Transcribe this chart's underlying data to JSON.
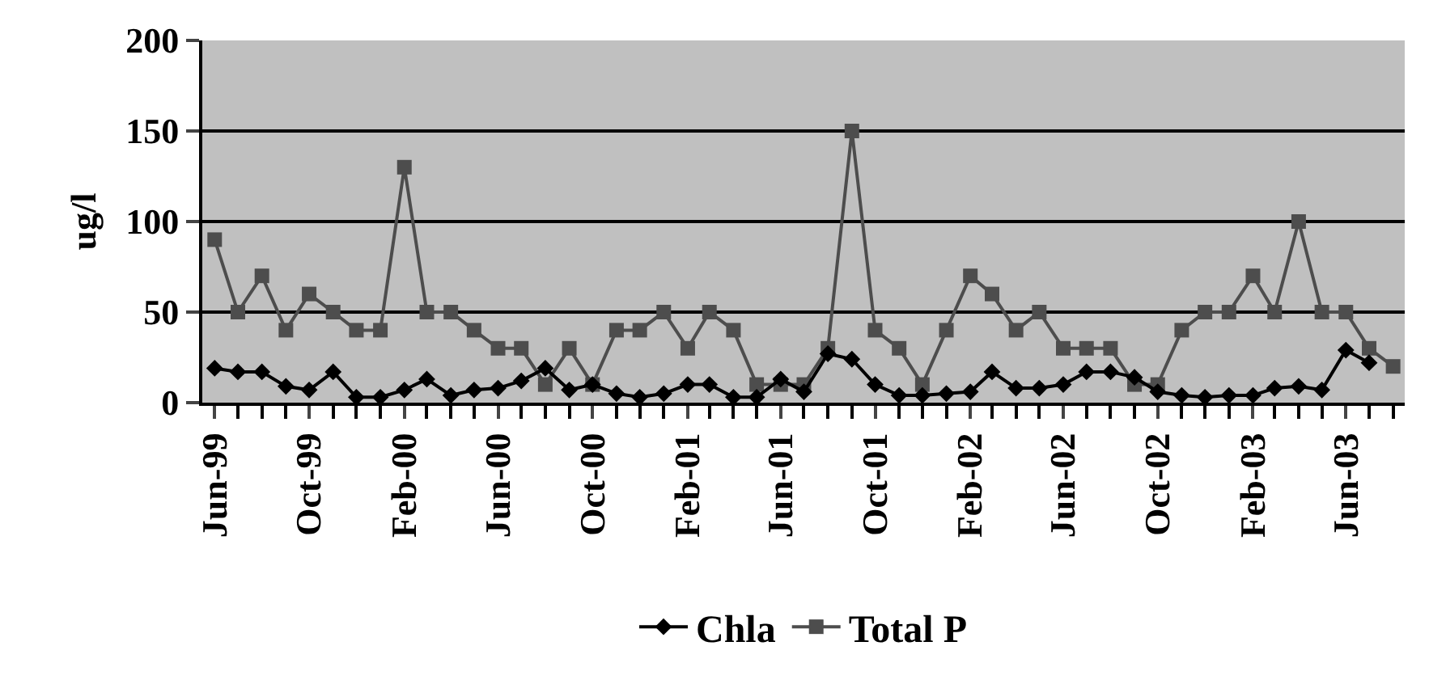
{
  "chart_data": {
    "type": "line",
    "ylabel": "ug/l",
    "x": [
      "1999-06",
      "1999-07",
      "1999-08",
      "1999-09",
      "1999-10",
      "1999-11",
      "1999-12",
      "2000-01",
      "2000-02",
      "2000-03",
      "2000-04",
      "2000-05",
      "2000-06",
      "2000-07",
      "2000-08",
      "2000-09",
      "2000-10",
      "2000-11",
      "2000-12",
      "2001-01",
      "2001-02",
      "2001-03",
      "2001-04",
      "2001-05",
      "2001-06",
      "2001-07",
      "2001-08",
      "2001-09",
      "2001-10",
      "2001-11",
      "2001-12",
      "2002-01",
      "2002-02",
      "2002-03",
      "2002-04",
      "2002-05",
      "2002-06",
      "2002-07",
      "2002-08",
      "2002-09",
      "2002-10",
      "2002-11",
      "2002-12",
      "2003-01",
      "2003-02",
      "2003-03",
      "2003-04",
      "2003-05",
      "2003-06",
      "2003-07",
      "2003-08"
    ],
    "series": [
      {
        "name": "Chla",
        "color": "#000000",
        "marker": "diamond",
        "values": [
          19,
          17,
          17,
          9,
          7,
          17,
          3,
          3,
          7,
          13,
          4,
          7,
          8,
          12,
          19,
          7,
          10,
          5,
          3,
          5,
          10,
          10,
          3,
          3,
          13,
          6,
          27,
          24,
          10,
          4,
          4,
          5,
          6,
          17,
          8,
          8,
          10,
          17,
          17,
          14,
          6,
          4,
          3,
          4,
          4,
          8,
          9,
          7,
          29,
          22,
          null
        ]
      },
      {
        "name": "Total P",
        "color": "#4d4d4d",
        "marker": "square",
        "values": [
          90,
          50,
          70,
          40,
          60,
          50,
          40,
          40,
          130,
          50,
          50,
          40,
          30,
          30,
          10,
          30,
          10,
          40,
          40,
          50,
          30,
          50,
          40,
          10,
          10,
          10,
          30,
          150,
          40,
          30,
          10,
          40,
          70,
          60,
          40,
          50,
          30,
          30,
          30,
          10,
          10,
          40,
          50,
          50,
          70,
          50,
          100,
          50,
          50,
          30,
          20
        ]
      }
    ],
    "xlim": [
      "1999-05-16",
      "2003-08-16"
    ],
    "xticks": [
      {
        "value": "1999-06",
        "label": "Jun-99"
      },
      {
        "value": "1999-10",
        "label": "Oct-99"
      },
      {
        "value": "2000-02",
        "label": "Feb-00"
      },
      {
        "value": "2000-06",
        "label": "Jun-00"
      },
      {
        "value": "2000-10",
        "label": "Oct-00"
      },
      {
        "value": "2001-02",
        "label": "Feb-01"
      },
      {
        "value": "2001-06",
        "label": "Jun-01"
      },
      {
        "value": "2001-10",
        "label": "Oct-01"
      },
      {
        "value": "2002-02",
        "label": "Feb-02"
      },
      {
        "value": "2002-06",
        "label": "Jun-02"
      },
      {
        "value": "2002-10",
        "label": "Oct-02"
      },
      {
        "value": "2003-02",
        "label": "Feb-03"
      },
      {
        "value": "2003-06",
        "label": "Jun-03"
      }
    ],
    "ylim": [
      0,
      200
    ],
    "yticks": [
      0,
      50,
      100,
      150,
      200
    ],
    "grid": "y",
    "legend": "bottom",
    "line_style": "solid"
  }
}
